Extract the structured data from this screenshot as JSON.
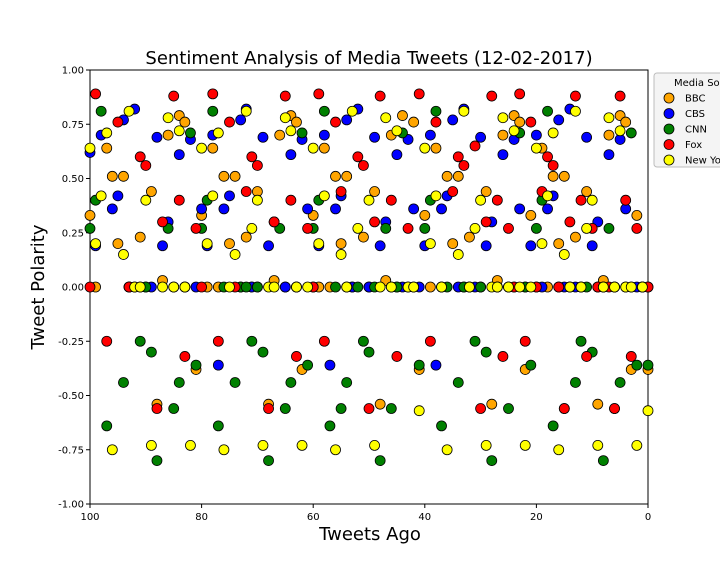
{
  "chart_data": {
    "type": "scatter",
    "title": "Sentiment Analysis of Media Tweets (12-02-2017)",
    "xlabel": "Tweets Ago",
    "ylabel": "Tweet Polarity",
    "xlim": [
      100,
      0
    ],
    "ylim": [
      -1.0,
      1.0
    ],
    "x_ticks": [
      100,
      80,
      60,
      40,
      20,
      0
    ],
    "x_tick_labels": [
      "100",
      "80",
      "60",
      "40",
      "20",
      "0"
    ],
    "y_ticks": [
      -1.0,
      -0.75,
      -0.5,
      -0.25,
      0.0,
      0.25,
      0.5,
      0.75,
      1.0
    ],
    "y_tick_labels": [
      "-1.00",
      "-0.75",
      "-0.50",
      "-0.25",
      "0.00",
      "0.25",
      "0.50",
      "0.75",
      "1.00"
    ],
    "grid": false,
    "legend": {
      "title": "Media So",
      "placement": "outside-top-right",
      "entries": [
        "BBC",
        "CBS",
        "CNN",
        "Fox",
        "New Yo"
      ]
    },
    "series": [
      {
        "name": "BBC",
        "color": "#FFA500",
        "x": [
          100,
          99,
          97,
          96,
          95,
          94,
          93,
          91,
          90,
          89,
          88,
          87,
          86,
          85,
          84,
          83,
          81,
          80,
          79,
          78,
          77,
          76,
          75,
          74,
          73,
          72,
          71,
          70,
          68,
          67,
          66,
          65,
          64,
          63,
          62,
          60,
          59,
          58,
          57,
          56,
          55,
          54,
          53,
          51,
          50,
          49,
          48,
          47,
          46,
          45,
          44,
          42,
          41,
          40,
          39,
          38,
          37,
          36,
          35,
          34,
          33,
          32,
          30,
          29,
          28,
          27,
          26,
          25,
          24,
          23,
          22,
          21,
          20,
          19,
          18,
          17,
          16,
          15,
          14,
          13,
          12,
          11,
          9,
          8,
          7,
          6,
          5,
          4,
          3,
          2,
          1,
          0
        ],
        "y": [
          0.33,
          0.0,
          0.64,
          0.51,
          0.2,
          0.51,
          0.0,
          0.23,
          0.0,
          0.44,
          -0.54,
          0.03,
          0.7,
          0.0,
          0.79,
          0.76,
          -0.38,
          0.33,
          0.0,
          0.64,
          0.0,
          0.51,
          0.2,
          0.51,
          0.0,
          0.23,
          0.0,
          0.44,
          -0.54,
          0.03,
          0.7,
          0.0,
          0.79,
          0.76,
          -0.38,
          0.33,
          0.0,
          0.64,
          0.0,
          0.51,
          0.2,
          0.51,
          0.0,
          0.23,
          0.0,
          0.44,
          -0.54,
          0.03,
          0.7,
          0.0,
          0.79,
          0.76,
          -0.38,
          0.33,
          0.0,
          0.64,
          0.0,
          0.51,
          0.2,
          0.51,
          0.0,
          0.23,
          0.0,
          0.44,
          -0.54,
          0.03,
          0.7,
          0.0,
          0.79,
          0.76,
          -0.38,
          0.33,
          0.0,
          0.64,
          0.0,
          0.51,
          0.2,
          0.51,
          0.0,
          0.23,
          0.0,
          0.44,
          -0.54,
          0.03,
          0.7,
          0.0,
          0.79,
          0.76,
          -0.38,
          0.33,
          0.0,
          -0.38
        ]
      },
      {
        "name": "CBS",
        "color": "#0000FF",
        "x": [
          100,
          99,
          98,
          96,
          95,
          94,
          93,
          92,
          91,
          89,
          88,
          87,
          86,
          84,
          83,
          82,
          81,
          80,
          79,
          78,
          77,
          76,
          75,
          73,
          72,
          71,
          70,
          69,
          68,
          67,
          65,
          64,
          63,
          62,
          61,
          60,
          59,
          58,
          57,
          56,
          55,
          54,
          53,
          52,
          50,
          49,
          48,
          47,
          46,
          45,
          44,
          43,
          42,
          41,
          40,
          39,
          38,
          37,
          36,
          35,
          34,
          33,
          32,
          31,
          30,
          29,
          28,
          27,
          26,
          25,
          24,
          23,
          22,
          21,
          20,
          19,
          18,
          17,
          16,
          15,
          14,
          13,
          12,
          11,
          10,
          9,
          8,
          7,
          6,
          5,
          4,
          3,
          2,
          1,
          0
        ],
        "y": [
          0.62,
          0.19,
          0.7,
          0.36,
          0.42,
          0.77,
          0.0,
          0.82,
          0.0,
          0.0,
          0.69,
          0.19,
          0.3,
          0.61,
          0.0,
          0.68,
          0.0,
          0.36,
          0.19,
          0.7,
          -0.36,
          0.36,
          0.42,
          0.77,
          0.82,
          0.0,
          0.0,
          0.69,
          0.19,
          0.3,
          0.0,
          0.61,
          0.0,
          0.68,
          0.36,
          0.0,
          0.19,
          0.7,
          -0.36,
          0.36,
          0.42,
          0.77,
          0.0,
          0.82,
          0.0,
          0.69,
          0.19,
          0.3,
          0.0,
          0.61,
          0.0,
          0.68,
          0.36,
          0.0,
          0.19,
          0.7,
          -0.36,
          0.36,
          0.42,
          0.77,
          0.0,
          0.82,
          0.0,
          0.0,
          0.69,
          0.19,
          0.3,
          0.0,
          0.61,
          0.0,
          0.68,
          0.36,
          0.0,
          0.19,
          0.7,
          0.0,
          0.36,
          0.42,
          0.77,
          0.0,
          0.82,
          0.0,
          0.0,
          0.69,
          0.19,
          0.3,
          0.0,
          0.61,
          0.0,
          0.68,
          0.36,
          0.0,
          0.0,
          0.0,
          0.0
        ]
      },
      {
        "name": "CNN",
        "color": "#008000",
        "x": [
          100,
          99,
          98,
          97,
          94,
          93,
          92,
          91,
          90,
          89,
          88,
          86,
          85,
          84,
          83,
          82,
          81,
          80,
          79,
          78,
          77,
          76,
          74,
          73,
          72,
          71,
          70,
          69,
          68,
          66,
          65,
          64,
          63,
          62,
          61,
          60,
          59,
          58,
          57,
          56,
          55,
          54,
          52,
          51,
          50,
          49,
          48,
          47,
          46,
          45,
          44,
          43,
          41,
          40,
          39,
          38,
          37,
          36,
          34,
          33,
          32,
          31,
          30,
          29,
          28,
          27,
          25,
          24,
          23,
          22,
          21,
          20,
          19,
          18,
          17,
          16,
          15,
          14,
          13,
          12,
          11,
          10,
          9,
          8,
          7,
          6,
          5,
          4,
          3,
          2,
          1,
          0
        ],
        "y": [
          0.27,
          0.4,
          0.81,
          -0.64,
          -0.44,
          0.0,
          0.0,
          -0.25,
          0.0,
          -0.3,
          -0.8,
          0.27,
          -0.56,
          -0.44,
          0.0,
          0.71,
          -0.36,
          0.27,
          0.4,
          0.81,
          -0.64,
          0.0,
          -0.44,
          0.0,
          0.0,
          -0.25,
          0.0,
          -0.3,
          -0.8,
          0.27,
          -0.56,
          -0.44,
          0.0,
          0.71,
          -0.36,
          0.27,
          0.4,
          0.81,
          -0.64,
          0.0,
          -0.56,
          -0.44,
          0.0,
          -0.25,
          -0.3,
          0.0,
          -0.8,
          0.27,
          -0.56,
          0.0,
          0.71,
          0.0,
          -0.36,
          0.27,
          0.4,
          0.81,
          -0.64,
          0.0,
          -0.44,
          0.0,
          0.0,
          -0.25,
          0.0,
          -0.3,
          -0.8,
          0.0,
          -0.56,
          0.0,
          0.71,
          0.0,
          -0.36,
          0.27,
          0.4,
          0.81,
          -0.64,
          0.0,
          -0.56,
          0.0,
          -0.44,
          -0.25,
          0.0,
          -0.3,
          0.0,
          -0.8,
          0.27,
          -0.56,
          -0.44,
          0.0,
          0.71,
          -0.36,
          0.0,
          -0.36
        ]
      },
      {
        "name": "Fox",
        "color": "#FF0000",
        "x": [
          100,
          99,
          97,
          95,
          93,
          91,
          90,
          88,
          87,
          85,
          84,
          83,
          81,
          80,
          78,
          77,
          75,
          74,
          72,
          71,
          70,
          68,
          67,
          65,
          64,
          63,
          61,
          60,
          59,
          58,
          56,
          55,
          54,
          52,
          51,
          50,
          49,
          48,
          46,
          45,
          43,
          42,
          41,
          39,
          38,
          37,
          35,
          34,
          33,
          31,
          30,
          29,
          28,
          27,
          26,
          25,
          24,
          23,
          22,
          21,
          20,
          19,
          18,
          17,
          16,
          15,
          14,
          13,
          12,
          11,
          10,
          9,
          8,
          7,
          6,
          5,
          4,
          3,
          2,
          1,
          0
        ],
        "y": [
          0.0,
          0.89,
          -0.25,
          0.76,
          0.0,
          0.6,
          0.56,
          -0.56,
          0.3,
          0.88,
          0.4,
          -0.32,
          0.27,
          0.0,
          0.89,
          -0.25,
          0.76,
          0.0,
          0.44,
          0.6,
          0.56,
          -0.56,
          0.3,
          0.88,
          0.4,
          -0.32,
          0.27,
          0.0,
          0.89,
          -0.25,
          0.76,
          0.44,
          0.0,
          0.6,
          0.56,
          -0.56,
          0.3,
          0.88,
          0.4,
          -0.32,
          0.27,
          0.0,
          0.89,
          -0.25,
          0.76,
          0.0,
          0.44,
          0.6,
          0.56,
          0.65,
          -0.56,
          0.3,
          0.88,
          0.4,
          -0.32,
          0.27,
          0.0,
          0.89,
          -0.25,
          0.76,
          0.0,
          0.44,
          0.6,
          0.56,
          0.0,
          -0.56,
          0.3,
          0.88,
          0.4,
          -0.32,
          0.27,
          0.0,
          0.0,
          0.0,
          -0.56,
          0.88,
          0.4,
          -0.32,
          0.27,
          0.0,
          0.0
        ]
      },
      {
        "name": "New Yo",
        "color": "#FFFF00",
        "x": [
          100,
          99,
          98,
          97,
          96,
          94,
          93,
          92,
          91,
          90,
          89,
          87,
          86,
          85,
          84,
          83,
          82,
          80,
          79,
          78,
          77,
          76,
          75,
          74,
          72,
          71,
          70,
          69,
          68,
          67,
          65,
          64,
          63,
          62,
          61,
          60,
          59,
          58,
          56,
          55,
          54,
          53,
          52,
          50,
          49,
          48,
          47,
          46,
          45,
          43,
          42,
          41,
          40,
          39,
          38,
          37,
          36,
          34,
          33,
          32,
          31,
          30,
          29,
          28,
          27,
          26,
          25,
          24,
          23,
          22,
          21,
          20,
          19,
          18,
          17,
          16,
          15,
          14,
          13,
          12,
          11,
          10,
          9,
          8,
          7,
          6,
          5,
          4,
          3,
          2,
          1,
          0
        ],
        "y": [
          0.64,
          0.2,
          0.42,
          0.71,
          -0.75,
          0.15,
          0.81,
          0.0,
          0.0,
          0.4,
          -0.73,
          0.0,
          0.78,
          0.0,
          0.72,
          0.0,
          -0.73,
          0.64,
          0.2,
          0.42,
          0.71,
          -0.75,
          0.0,
          0.15,
          0.81,
          0.27,
          0.4,
          -0.73,
          0.0,
          0.0,
          0.78,
          0.72,
          0.0,
          -0.73,
          0.0,
          0.64,
          0.2,
          0.42,
          -0.75,
          0.15,
          0.0,
          0.81,
          0.27,
          0.4,
          -0.73,
          0.0,
          0.78,
          0.0,
          0.72,
          0.0,
          0.0,
          -0.57,
          0.64,
          0.2,
          0.42,
          0.0,
          -0.75,
          0.15,
          0.81,
          0.0,
          0.27,
          0.4,
          -0.73,
          0.0,
          0.0,
          0.78,
          0.0,
          0.72,
          0.0,
          -0.73,
          0.0,
          0.64,
          0.2,
          0.42,
          0.71,
          -0.75,
          0.15,
          0.0,
          0.81,
          0.0,
          0.27,
          0.4,
          -0.73,
          0.0,
          0.78,
          0.0,
          0.72,
          0.0,
          0.0,
          -0.73,
          0.0,
          -0.57
        ]
      }
    ]
  }
}
